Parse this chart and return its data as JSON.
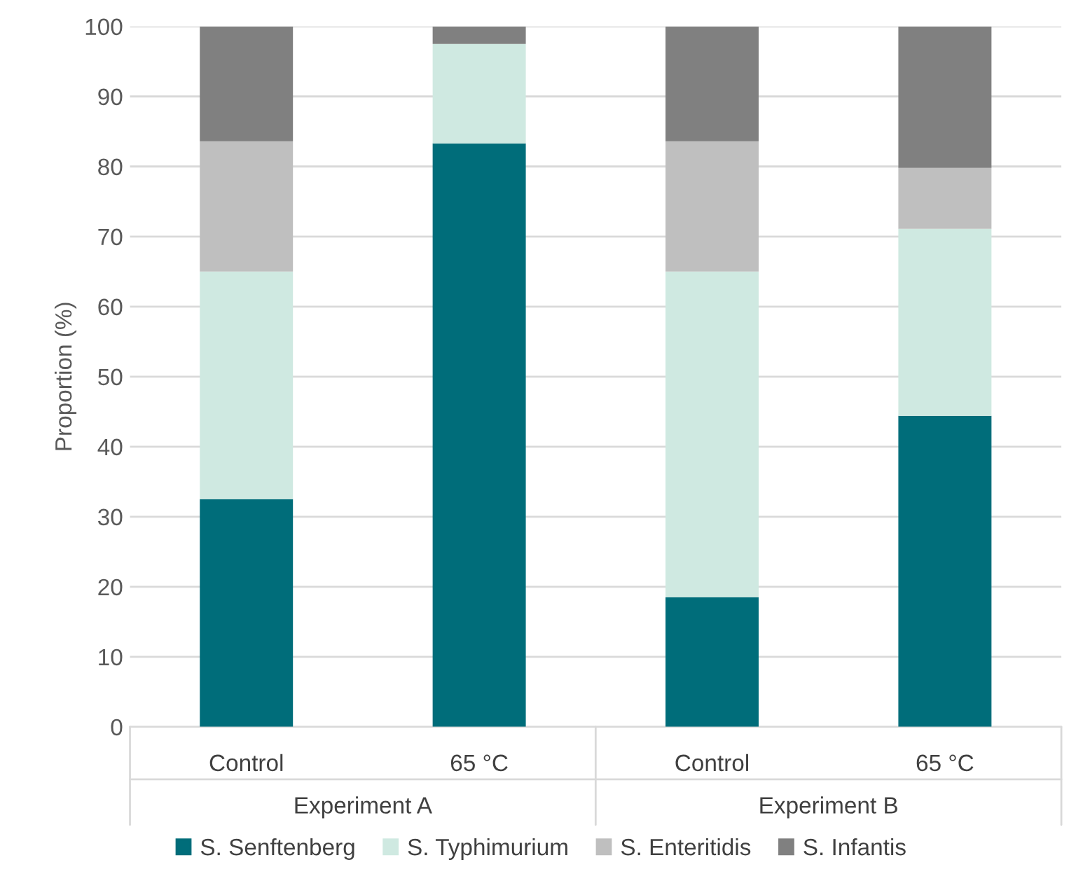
{
  "chart_data": {
    "type": "bar",
    "stacked": true,
    "ylabel": "Proportion (%)",
    "categories": [
      "Control",
      "65 °C",
      "Control",
      "65 °C"
    ],
    "annotations": [
      "Experiment A",
      "Experiment B"
    ],
    "series": [
      {
        "name": "S. Senftenberg",
        "color": "#006d7a",
        "values": [
          32.5,
          83.3,
          18.5,
          44.4
        ]
      },
      {
        "name": "S. Typhimurium",
        "color": "#cfe9e1",
        "values": [
          32.5,
          14.2,
          46.5,
          26.7
        ]
      },
      {
        "name": "S. Enteritidis",
        "color": "#bfbfbf",
        "values": [
          18.6,
          0,
          18.6,
          8.7
        ]
      },
      {
        "name": "S. Infantis",
        "color": "#808080",
        "values": [
          16.4,
          2.5,
          16.4,
          20.2
        ]
      }
    ],
    "ylim": [
      0,
      100
    ],
    "yticks": [
      0,
      10,
      20,
      30,
      40,
      50,
      60,
      70,
      80,
      90,
      100
    ],
    "grid": "y",
    "legend": "bottom"
  }
}
